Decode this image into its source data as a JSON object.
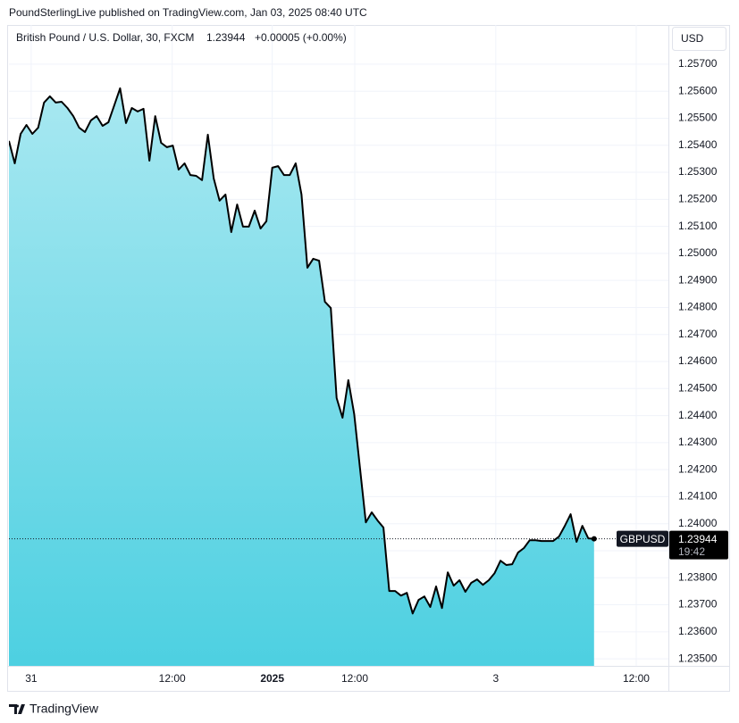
{
  "header": "PoundSterlingLive published on TradingView.com, Jan 03, 2025 08:40 UTC",
  "footer": "TradingView",
  "chart_data": {
    "type": "area",
    "title": "British Pound / U.S. Dollar, 30, FXCM",
    "last_price": 1.23944,
    "change": "+0.00005 (+0.00%)",
    "currency": "USD",
    "symbol": "GBPUSD",
    "countdown": "19:42",
    "x": [
      0,
      1,
      2,
      3,
      4,
      5,
      6,
      7,
      8,
      9,
      10,
      11,
      12,
      13,
      14,
      15,
      16,
      17,
      18,
      19,
      20,
      21,
      22,
      23,
      24,
      25,
      26,
      27,
      28,
      29,
      30,
      31,
      32,
      33,
      34,
      35,
      36,
      37,
      38,
      39,
      40,
      41,
      42,
      43,
      44,
      45,
      46,
      47,
      48,
      49,
      50,
      51,
      52,
      53,
      54,
      55,
      56,
      57,
      58,
      59,
      60,
      61,
      62,
      63,
      64,
      65,
      66,
      67,
      68,
      69,
      70,
      71,
      72,
      73,
      74,
      75,
      76,
      77,
      78,
      79,
      80,
      81,
      82,
      83,
      84,
      85,
      86,
      87,
      88,
      89,
      90,
      91,
      92,
      93,
      94,
      95,
      96,
      97,
      98,
      99,
      100
    ],
    "series": [
      {
        "name": "GBPUSD",
        "color": "#000000",
        "values": [
          1.25416,
          1.25333,
          1.25442,
          1.25475,
          1.25442,
          1.25465,
          1.25558,
          1.25581,
          1.25558,
          1.25561,
          1.25538,
          1.25508,
          1.25465,
          1.25449,
          1.25492,
          1.25508,
          1.25472,
          1.25485,
          1.25548,
          1.25611,
          1.25482,
          1.25538,
          1.25525,
          1.25535,
          1.25343,
          1.25508,
          1.25409,
          1.25393,
          1.25399,
          1.2531,
          1.25333,
          1.2529,
          1.25287,
          1.25271,
          1.25439,
          1.25277,
          1.25195,
          1.25218,
          1.25079,
          1.25181,
          1.25099,
          1.25099,
          1.25158,
          1.25092,
          1.25119,
          1.25317,
          1.25323,
          1.2529,
          1.2529,
          1.25333,
          1.25218,
          1.24947,
          1.2498,
          1.24973,
          1.24821,
          1.24798,
          1.24465,
          1.24392,
          1.24531,
          1.24405,
          1.24204,
          1.24005,
          1.24042,
          1.24012,
          1.23986,
          1.23751,
          1.23751,
          1.23734,
          1.23744,
          1.23668,
          1.23718,
          1.23731,
          1.23692,
          1.23768,
          1.23688,
          1.2382,
          1.23771,
          1.23791,
          1.23748,
          1.23781,
          1.23794,
          1.23774,
          1.23791,
          1.23817,
          1.23863,
          1.23847,
          1.2385,
          1.23893,
          1.2391,
          1.23939,
          1.23939,
          1.23936,
          1.23936,
          1.23936,
          1.23952,
          1.23992,
          1.24035,
          1.23933,
          1.23992,
          1.23946,
          1.23944
        ]
      }
    ],
    "fill_top": "#a8e8f1",
    "fill_bottom": "#4dd0e1",
    "xlim": [
      0,
      112.7
    ],
    "xticks": [
      {
        "value": 3.8,
        "label": "31"
      },
      {
        "value": 27.9,
        "label": "12:00"
      },
      {
        "value": 45,
        "label": "2025",
        "bold": true
      },
      {
        "value": 59.1,
        "label": "12:00"
      },
      {
        "value": 83.2,
        "label": "3"
      },
      {
        "value": 107.2,
        "label": "12:00"
      }
    ],
    "ylim": [
      1.23474,
      1.25845
    ],
    "yticks": [
      {
        "value": 1.235,
        "label": "1.23500"
      },
      {
        "value": 1.236,
        "label": "1.23600"
      },
      {
        "value": 1.237,
        "label": "1.23700"
      },
      {
        "value": 1.238,
        "label": "1.23800"
      },
      {
        "value": 1.239,
        "label": "1.23900"
      },
      {
        "value": 1.24,
        "label": "1.24000"
      },
      {
        "value": 1.241,
        "label": "1.24100"
      },
      {
        "value": 1.242,
        "label": "1.24200"
      },
      {
        "value": 1.243,
        "label": "1.24300"
      },
      {
        "value": 1.244,
        "label": "1.24400"
      },
      {
        "value": 1.245,
        "label": "1.24500"
      },
      {
        "value": 1.246,
        "label": "1.24600"
      },
      {
        "value": 1.247,
        "label": "1.24700"
      },
      {
        "value": 1.248,
        "label": "1.24800"
      },
      {
        "value": 1.249,
        "label": "1.24900"
      },
      {
        "value": 1.25,
        "label": "1.25000"
      },
      {
        "value": 1.251,
        "label": "1.25100"
      },
      {
        "value": 1.252,
        "label": "1.25200"
      },
      {
        "value": 1.253,
        "label": "1.25300"
      },
      {
        "value": 1.254,
        "label": "1.25400"
      },
      {
        "value": 1.255,
        "label": "1.25500"
      },
      {
        "value": 1.256,
        "label": "1.25600"
      },
      {
        "value": 1.257,
        "label": "1.25700"
      }
    ],
    "grid": true
  }
}
